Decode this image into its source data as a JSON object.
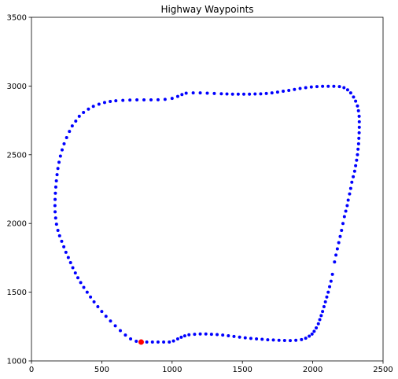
{
  "chart_data": {
    "type": "scatter",
    "title": "Highway Waypoints",
    "xlabel": "",
    "ylabel": "",
    "xlim": [
      0,
      2500
    ],
    "ylim": [
      1000,
      3500
    ],
    "grid": false,
    "xticks": [
      "0",
      "500",
      "1000",
      "1500",
      "2000",
      "2500"
    ],
    "yticks": [
      "1000",
      "1500",
      "2000",
      "2500",
      "3000",
      "3500"
    ],
    "series": [
      {
        "color": "#0000ff",
        "marker": "dot",
        "points": [
          [
            780,
            1137
          ],
          [
            820,
            1137
          ],
          [
            860,
            1137
          ],
          [
            900,
            1137
          ],
          [
            940,
            1137
          ],
          [
            980,
            1137
          ],
          [
            1010,
            1145
          ],
          [
            1040,
            1160
          ],
          [
            1065,
            1172
          ],
          [
            1090,
            1182
          ],
          [
            1120,
            1190
          ],
          [
            1160,
            1194
          ],
          [
            1200,
            1196
          ],
          [
            1240,
            1196
          ],
          [
            1280,
            1194
          ],
          [
            1320,
            1192
          ],
          [
            1360,
            1188
          ],
          [
            1400,
            1183
          ],
          [
            1440,
            1178
          ],
          [
            1480,
            1173
          ],
          [
            1520,
            1168
          ],
          [
            1560,
            1164
          ],
          [
            1600,
            1160
          ],
          [
            1640,
            1157
          ],
          [
            1680,
            1154
          ],
          [
            1720,
            1152
          ],
          [
            1760,
            1150
          ],
          [
            1800,
            1149
          ],
          [
            1840,
            1148
          ],
          [
            1880,
            1150
          ],
          [
            1920,
            1155
          ],
          [
            1950,
            1165
          ],
          [
            1975,
            1180
          ],
          [
            1995,
            1195
          ],
          [
            2010,
            1215
          ],
          [
            2025,
            1240
          ],
          [
            2040,
            1270
          ],
          [
            2050,
            1300
          ],
          [
            2060,
            1330
          ],
          [
            2070,
            1360
          ],
          [
            2080,
            1395
          ],
          [
            2090,
            1430
          ],
          [
            2100,
            1465
          ],
          [
            2110,
            1500
          ],
          [
            2120,
            1540
          ],
          [
            2130,
            1580
          ],
          [
            2140,
            1630
          ],
          [
            2155,
            1720
          ],
          [
            2165,
            1770
          ],
          [
            2175,
            1815
          ],
          [
            2185,
            1860
          ],
          [
            2195,
            1905
          ],
          [
            2205,
            1950
          ],
          [
            2215,
            2000
          ],
          [
            2225,
            2050
          ],
          [
            2235,
            2090
          ],
          [
            2245,
            2130
          ],
          [
            2252,
            2170
          ],
          [
            2262,
            2215
          ],
          [
            2270,
            2255
          ],
          [
            2278,
            2300
          ],
          [
            2288,
            2340
          ],
          [
            2298,
            2380
          ],
          [
            2305,
            2420
          ],
          [
            2312,
            2460
          ],
          [
            2318,
            2500
          ],
          [
            2322,
            2540
          ],
          [
            2326,
            2580
          ],
          [
            2328,
            2620
          ],
          [
            2330,
            2660
          ],
          [
            2331,
            2700
          ],
          [
            2331,
            2740
          ],
          [
            2330,
            2780
          ],
          [
            2325,
            2820
          ],
          [
            2318,
            2855
          ],
          [
            2305,
            2890
          ],
          [
            2290,
            2920
          ],
          [
            2270,
            2950
          ],
          [
            2248,
            2972
          ],
          [
            2222,
            2988
          ],
          [
            2190,
            2996
          ],
          [
            2150,
            2998
          ],
          [
            2110,
            2998
          ],
          [
            2070,
            2998
          ],
          [
            2030,
            2996
          ],
          [
            1990,
            2993
          ],
          [
            1950,
            2988
          ],
          [
            1910,
            2982
          ],
          [
            1870,
            2975
          ],
          [
            1830,
            2968
          ],
          [
            1790,
            2962
          ],
          [
            1750,
            2956
          ],
          [
            1710,
            2950
          ],
          [
            1670,
            2946
          ],
          [
            1630,
            2943
          ],
          [
            1590,
            2942
          ],
          [
            1550,
            2941
          ],
          [
            1510,
            2941
          ],
          [
            1470,
            2941
          ],
          [
            1430,
            2941
          ],
          [
            1390,
            2942
          ],
          [
            1350,
            2944
          ],
          [
            1300,
            2946
          ],
          [
            1250,
            2948
          ],
          [
            1200,
            2950
          ],
          [
            1150,
            2950
          ],
          [
            1100,
            2948
          ],
          [
            1070,
            2938
          ],
          [
            1040,
            2924
          ],
          [
            1000,
            2910
          ],
          [
            950,
            2903
          ],
          [
            900,
            2900
          ],
          [
            850,
            2899
          ],
          [
            800,
            2899
          ],
          [
            750,
            2899
          ],
          [
            700,
            2898
          ],
          [
            650,
            2896
          ],
          [
            600,
            2893
          ],
          [
            560,
            2888
          ],
          [
            520,
            2880
          ],
          [
            480,
            2868
          ],
          [
            440,
            2852
          ],
          [
            405,
            2832
          ],
          [
            370,
            2808
          ],
          [
            340,
            2780
          ],
          [
            315,
            2745
          ],
          [
            290,
            2710
          ],
          [
            270,
            2670
          ],
          [
            250,
            2625
          ],
          [
            232,
            2580
          ],
          [
            218,
            2535
          ],
          [
            206,
            2490
          ],
          [
            196,
            2445
          ],
          [
            188,
            2400
          ],
          [
            182,
            2355
          ],
          [
            177,
            2310
          ],
          [
            173,
            2265
          ],
          [
            170,
            2220
          ],
          [
            168,
            2175
          ],
          [
            167,
            2130
          ],
          [
            168,
            2085
          ],
          [
            172,
            2040
          ],
          [
            178,
            1995
          ],
          [
            188,
            1950
          ],
          [
            200,
            1910
          ],
          [
            215,
            1870
          ],
          [
            230,
            1830
          ],
          [
            245,
            1790
          ],
          [
            262,
            1752
          ],
          [
            278,
            1715
          ],
          [
            294,
            1678
          ],
          [
            312,
            1640
          ],
          [
            330,
            1605
          ],
          [
            350,
            1570
          ],
          [
            372,
            1535
          ],
          [
            396,
            1500
          ],
          [
            420,
            1465
          ],
          [
            445,
            1430
          ],
          [
            472,
            1395
          ],
          [
            500,
            1360
          ],
          [
            530,
            1325
          ],
          [
            562,
            1290
          ],
          [
            596,
            1255
          ],
          [
            632,
            1220
          ],
          [
            668,
            1188
          ],
          [
            705,
            1160
          ],
          [
            745,
            1143
          ]
        ]
      }
    ],
    "highlight": {
      "color": "#ff0000",
      "points": [
        [
          780,
          1137
        ]
      ]
    }
  }
}
